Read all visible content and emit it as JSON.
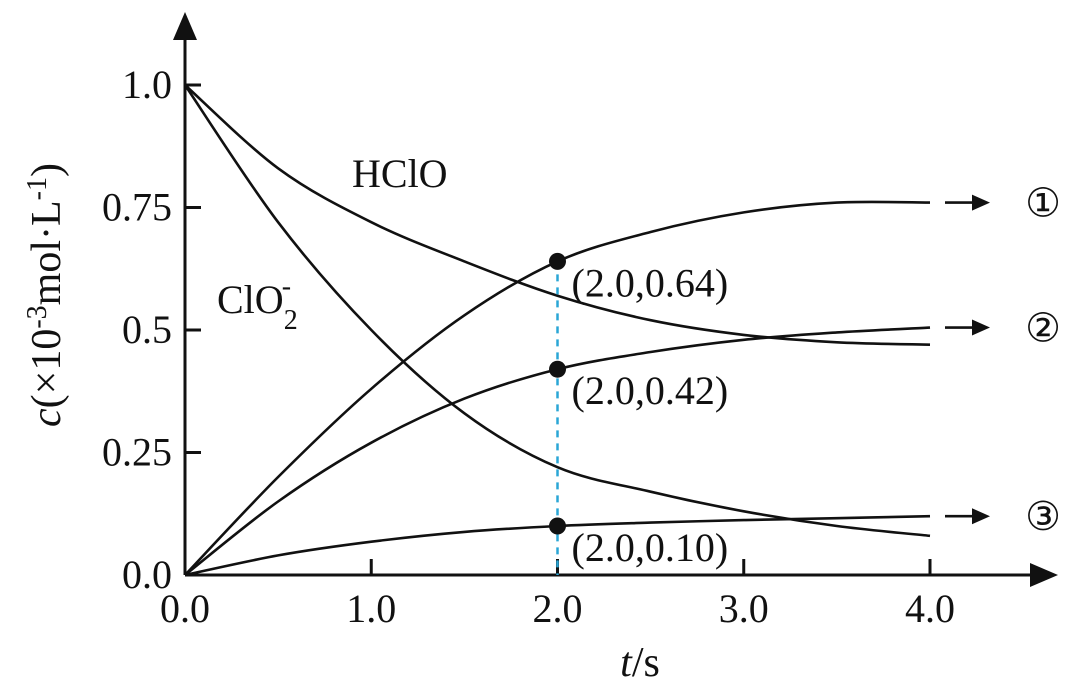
{
  "chart_data": {
    "type": "line",
    "x": [
      0.0,
      0.5,
      1.0,
      1.5,
      2.0,
      2.5,
      3.0,
      3.5,
      4.0
    ],
    "xlim": [
      0,
      4.0
    ],
    "ylim": [
      0,
      1.0
    ],
    "x_ticks": [
      {
        "value": 0.0,
        "label": "0.0"
      },
      {
        "value": 1.0,
        "label": "1.0"
      },
      {
        "value": 2.0,
        "label": "2.0"
      },
      {
        "value": 3.0,
        "label": "3.0"
      },
      {
        "value": 4.0,
        "label": "4.0"
      }
    ],
    "y_ticks": [
      {
        "value": 0.0,
        "label": "0.0"
      },
      {
        "value": 0.25,
        "label": "0.25"
      },
      {
        "value": 0.5,
        "label": "0.5"
      },
      {
        "value": 0.75,
        "label": "0.75"
      },
      {
        "value": 1.0,
        "label": "1.0"
      }
    ],
    "xlabel": {
      "italic": "t",
      "rest": "/s"
    },
    "ylabel": {
      "italic": "c",
      "rest": "(×10",
      "exp": "-3",
      "rest2": "mol·L",
      "exp2": "-1",
      "close": ")"
    },
    "series": [
      {
        "name": "HClO",
        "values": [
          1.0,
          0.83,
          0.72,
          0.64,
          0.57,
          0.52,
          0.49,
          0.475,
          0.47
        ]
      },
      {
        "name": "ClO2-",
        "values": [
          1.0,
          0.72,
          0.5,
          0.33,
          0.22,
          0.17,
          0.13,
          0.1,
          0.08
        ]
      },
      {
        "name": "①",
        "values": [
          0.0,
          0.2,
          0.38,
          0.53,
          0.64,
          0.7,
          0.74,
          0.76,
          0.76
        ]
      },
      {
        "name": "②",
        "values": [
          0.0,
          0.15,
          0.27,
          0.36,
          0.42,
          0.455,
          0.48,
          0.495,
          0.505
        ]
      },
      {
        "name": "③",
        "values": [
          0.0,
          0.04,
          0.068,
          0.088,
          0.1,
          0.107,
          0.112,
          0.116,
          0.12
        ]
      }
    ],
    "curve_labels": {
      "hclo": "HClO",
      "clo2_base": "ClO",
      "clo2_sub": "2",
      "clo2_sup": "-"
    },
    "markers": [
      {
        "label": "①",
        "y": 0.76
      },
      {
        "label": "②",
        "y": 0.505
      },
      {
        "label": "③",
        "y": 0.12
      }
    ],
    "annotated_points": [
      {
        "x": 2.0,
        "y": 0.64,
        "label": "(2.0,0.64)"
      },
      {
        "x": 2.0,
        "y": 0.42,
        "label": "(2.0,0.42)"
      },
      {
        "x": 2.0,
        "y": 0.1,
        "label": "(2.0,0.10)"
      }
    ],
    "dashed_line_color": "#2aa6d6",
    "grid": false,
    "legend": "none"
  }
}
